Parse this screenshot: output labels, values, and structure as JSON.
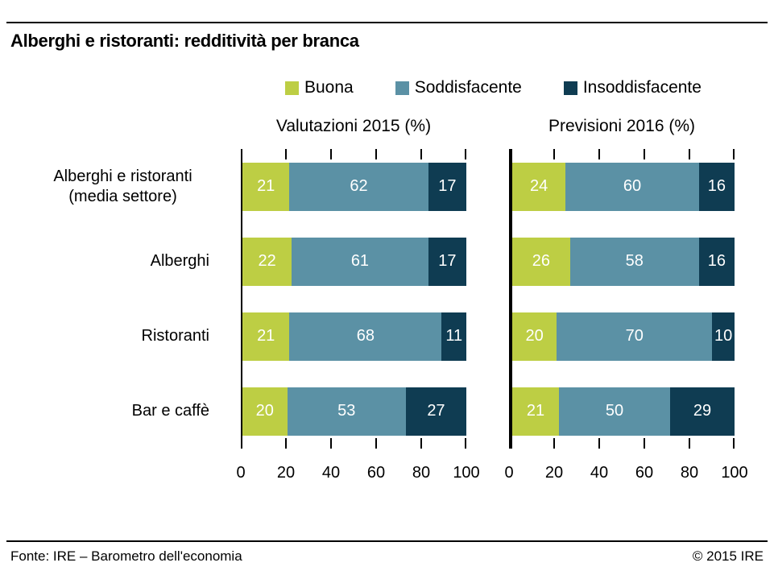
{
  "title": "Alberghi e ristoranti: redditività per branca",
  "legend": [
    {
      "label": "Buona",
      "color": "#bdce44"
    },
    {
      "label": "Soddisfacente",
      "color": "#5b91a5"
    },
    {
      "label": "Insoddisfacente",
      "color": "#0f3c52"
    }
  ],
  "footer": {
    "source": "Fonte: IRE – Barometro dell'economia",
    "copyright": "© 2015 IRE"
  },
  "chart_data": {
    "type": "bar",
    "subtype": "horizontal-stacked",
    "unit": "%",
    "grid": false,
    "legend_position": "top",
    "xlim": [
      0,
      100
    ],
    "xticks": [
      0,
      20,
      40,
      60,
      80,
      100
    ],
    "categories": [
      "Alberghi e ristoranti (media settore)",
      "Alberghi",
      "Ristoranti",
      "Bar e caffè"
    ],
    "series_names": [
      "Buona",
      "Soddisfacente",
      "Insoddisfacente"
    ],
    "panels": [
      {
        "title": "Valutazioni 2015 (%)",
        "series": [
          {
            "name": "Buona",
            "values": [
              21,
              22,
              21,
              20
            ]
          },
          {
            "name": "Soddisfacente",
            "values": [
              62,
              61,
              68,
              53
            ]
          },
          {
            "name": "Insoddisfacente",
            "values": [
              17,
              17,
              11,
              27
            ]
          }
        ]
      },
      {
        "title": "Previsioni 2016 (%)",
        "series": [
          {
            "name": "Buona",
            "values": [
              24,
              26,
              20,
              21
            ]
          },
          {
            "name": "Soddisfacente",
            "values": [
              60,
              58,
              70,
              50
            ]
          },
          {
            "name": "Insoddisfacente",
            "values": [
              16,
              16,
              10,
              29
            ]
          }
        ]
      }
    ]
  }
}
